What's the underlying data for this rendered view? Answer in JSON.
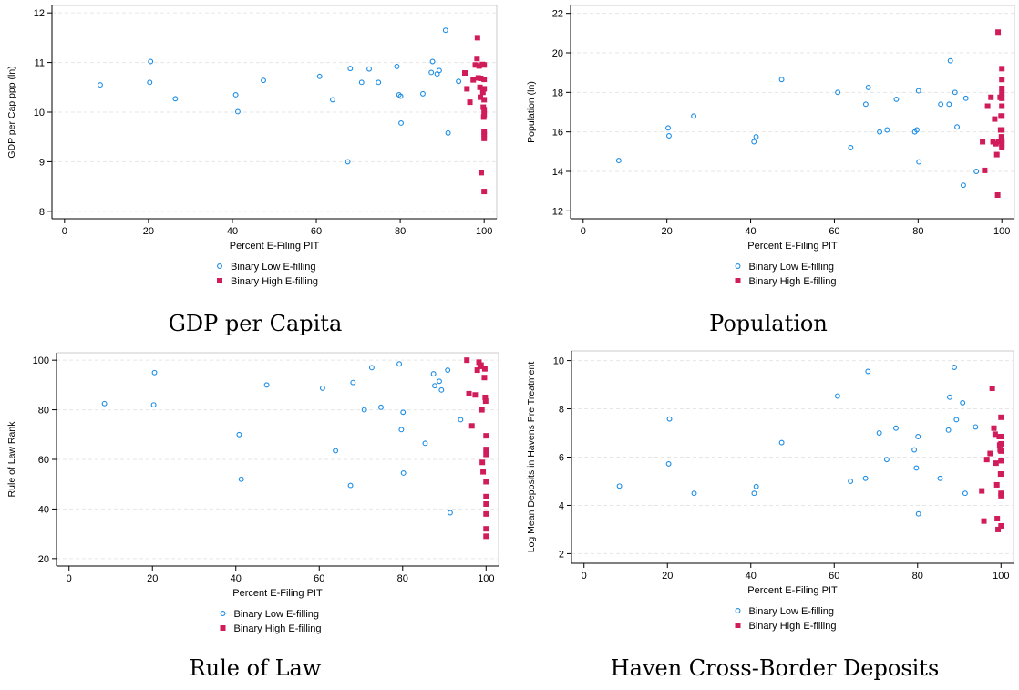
{
  "chart_data": [
    {
      "type": "scatter",
      "caption": "GDP per Capita",
      "xlabel": "Percent E-Filing PIT",
      "ylabel": "GDP per Cap ppp (ln)",
      "xlim": [
        -3,
        103
      ],
      "ylim": [
        7.85,
        12.15
      ],
      "xticks": [
        "0",
        "20",
        "40",
        "60",
        "80",
        "100"
      ],
      "yticks": [
        "8",
        "9",
        "10",
        "11",
        "12"
      ],
      "grid": "horizontal dashed",
      "legend": "bottom-center",
      "series": [
        {
          "name": "Binary Low E-filling",
          "marker": "hollow-circle",
          "color": "#1a8ce6",
          "points": [
            [
              8.5,
              10.55
            ],
            [
              20.3,
              10.6
            ],
            [
              20.5,
              11.02
            ],
            [
              26.4,
              10.27
            ],
            [
              40.8,
              10.35
            ],
            [
              41.3,
              10.01
            ],
            [
              47.4,
              10.64
            ],
            [
              60.8,
              10.72
            ],
            [
              63.9,
              10.25
            ],
            [
              67.5,
              9.0
            ],
            [
              68.1,
              10.88
            ],
            [
              70.8,
              10.6
            ],
            [
              72.6,
              10.87
            ],
            [
              74.8,
              10.6
            ],
            [
              79.2,
              10.92
            ],
            [
              79.7,
              10.35
            ],
            [
              80.1,
              10.32
            ],
            [
              80.2,
              9.78
            ],
            [
              85.4,
              10.37
            ],
            [
              87.4,
              10.8
            ],
            [
              87.7,
              11.02
            ],
            [
              88.8,
              10.77
            ],
            [
              89.3,
              10.84
            ],
            [
              90.8,
              11.65
            ],
            [
              91.4,
              9.58
            ],
            [
              93.9,
              10.62
            ]
          ]
        },
        {
          "name": "Binary High E-filling",
          "marker": "filled-square",
          "color": "#d01c5b",
          "points": [
            [
              95.4,
              10.79
            ],
            [
              95.9,
              10.47
            ],
            [
              96.6,
              10.2
            ],
            [
              97.4,
              10.65
            ],
            [
              97.9,
              10.95
            ],
            [
              98.3,
              11.08
            ],
            [
              98.4,
              11.5
            ],
            [
              98.6,
              10.69
            ],
            [
              98.8,
              10.93
            ],
            [
              99.0,
              10.5
            ],
            [
              99.1,
              10.3
            ],
            [
              99.2,
              10.68
            ],
            [
              99.3,
              8.78
            ],
            [
              99.6,
              10.96
            ],
            [
              99.7,
              10.4
            ],
            [
              99.8,
              10.1
            ],
            [
              99.9,
              9.9
            ],
            [
              100.0,
              10.95
            ],
            [
              100.0,
              10.66
            ],
            [
              100.0,
              10.47
            ],
            [
              100.0,
              10.25
            ],
            [
              100.0,
              10.05
            ],
            [
              100.0,
              9.95
            ],
            [
              100.0,
              9.6
            ],
            [
              100.0,
              9.55
            ],
            [
              100.0,
              9.47
            ],
            [
              100.0,
              8.4
            ]
          ]
        }
      ]
    },
    {
      "type": "scatter",
      "caption": "Population",
      "xlabel": "Percent E-Filing PIT",
      "ylabel": "Population (ln)",
      "xlim": [
        -3,
        103
      ],
      "ylim": [
        11.6,
        22.4
      ],
      "xticks": [
        "0",
        "20",
        "40",
        "60",
        "80",
        "100"
      ],
      "yticks": [
        "12",
        "14",
        "16",
        "18",
        "20",
        "22"
      ],
      "grid": "horizontal dashed",
      "legend": "bottom-center",
      "series": [
        {
          "name": "Binary Low E-filling",
          "marker": "hollow-circle",
          "color": "#1a8ce6",
          "points": [
            [
              8.5,
              14.55
            ],
            [
              20.3,
              16.2
            ],
            [
              20.5,
              15.8
            ],
            [
              26.4,
              16.8
            ],
            [
              40.8,
              15.5
            ],
            [
              41.3,
              15.75
            ],
            [
              47.4,
              18.65
            ],
            [
              60.8,
              18.0
            ],
            [
              63.9,
              15.2
            ],
            [
              67.5,
              17.4
            ],
            [
              68.1,
              18.25
            ],
            [
              70.8,
              16.0
            ],
            [
              72.6,
              16.1
            ],
            [
              74.8,
              17.65
            ],
            [
              79.2,
              16.0
            ],
            [
              79.7,
              16.1
            ],
            [
              80.1,
              18.08
            ],
            [
              80.2,
              14.48
            ],
            [
              85.4,
              17.4
            ],
            [
              87.4,
              17.4
            ],
            [
              87.7,
              19.6
            ],
            [
              88.8,
              18.0
            ],
            [
              89.3,
              16.25
            ],
            [
              90.8,
              13.3
            ],
            [
              91.4,
              17.7
            ],
            [
              93.9,
              14.0
            ]
          ]
        },
        {
          "name": "Binary High E-filling",
          "marker": "filled-square",
          "color": "#d01c5b",
          "points": [
            [
              95.4,
              15.5
            ],
            [
              95.9,
              14.05
            ],
            [
              96.6,
              17.3
            ],
            [
              97.4,
              17.75
            ],
            [
              97.9,
              15.5
            ],
            [
              98.3,
              16.65
            ],
            [
              98.6,
              15.4
            ],
            [
              98.8,
              14.85
            ],
            [
              99.0,
              12.8
            ],
            [
              99.1,
              21.05
            ],
            [
              99.3,
              15.5
            ],
            [
              99.6,
              17.75
            ],
            [
              99.7,
              16.1
            ],
            [
              99.8,
              16.8
            ],
            [
              99.9,
              15.75
            ],
            [
              100.0,
              19.2
            ],
            [
              100.0,
              18.65
            ],
            [
              100.0,
              18.2
            ],
            [
              100.0,
              17.95
            ],
            [
              100.0,
              17.7
            ],
            [
              100.0,
              17.3
            ],
            [
              100.0,
              16.8
            ],
            [
              100.0,
              16.1
            ],
            [
              100.0,
              15.55
            ],
            [
              100.0,
              15.4
            ],
            [
              100.0,
              15.2
            ]
          ]
        }
      ]
    },
    {
      "type": "scatter",
      "caption": "Rule of Law",
      "xlabel": "Percent E-Filing PIT",
      "ylabel": "Rule of Law Rank",
      "xlim": [
        -3,
        103
      ],
      "ylim": [
        17,
        103
      ],
      "xticks": [
        "0",
        "20",
        "40",
        "60",
        "80",
        "100"
      ],
      "yticks": [
        "20",
        "40",
        "60",
        "80",
        "100"
      ],
      "grid": "horizontal dashed",
      "legend": "bottom-center",
      "series": [
        {
          "name": "Binary Low E-filling",
          "marker": "hollow-circle",
          "color": "#1a8ce6",
          "points": [
            [
              8.5,
              82.5
            ],
            [
              20.3,
              82.0
            ],
            [
              20.5,
              95.0
            ],
            [
              40.8,
              70.0
            ],
            [
              41.3,
              52.0
            ],
            [
              47.4,
              90.0
            ],
            [
              60.8,
              88.7
            ],
            [
              63.9,
              63.5
            ],
            [
              67.5,
              49.5
            ],
            [
              68.1,
              91.0
            ],
            [
              70.8,
              80.0
            ],
            [
              72.6,
              97.0
            ],
            [
              74.8,
              81.0
            ],
            [
              79.2,
              98.5
            ],
            [
              79.7,
              72.0
            ],
            [
              80.1,
              79.0
            ],
            [
              80.2,
              54.5
            ],
            [
              85.4,
              66.5
            ],
            [
              87.4,
              94.5
            ],
            [
              87.7,
              89.7
            ],
            [
              88.8,
              91.5
            ],
            [
              89.3,
              88.0
            ],
            [
              90.8,
              96.0
            ],
            [
              91.4,
              38.5
            ],
            [
              93.9,
              76.0
            ]
          ]
        },
        {
          "name": "Binary High E-filling",
          "marker": "filled-square",
          "color": "#d01c5b",
          "points": [
            [
              95.4,
              100.0
            ],
            [
              95.9,
              86.5
            ],
            [
              96.6,
              73.5
            ],
            [
              97.4,
              86.0
            ],
            [
              97.9,
              96.0
            ],
            [
              98.3,
              99.2
            ],
            [
              98.6,
              97.5
            ],
            [
              98.8,
              98.0
            ],
            [
              99.0,
              80.0
            ],
            [
              99.1,
              58.8
            ],
            [
              99.3,
              55.0
            ],
            [
              99.6,
              93.0
            ],
            [
              99.7,
              96.5
            ],
            [
              99.8,
              85.0
            ],
            [
              99.9,
              83.5
            ],
            [
              100.0,
              69.5
            ],
            [
              100.0,
              64.0
            ],
            [
              100.0,
              62.0
            ],
            [
              100.0,
              51.0
            ],
            [
              100.0,
              45.0
            ],
            [
              100.0,
              42.0
            ],
            [
              100.0,
              38.0
            ],
            [
              100.0,
              32.0
            ],
            [
              100.0,
              29.0
            ]
          ]
        }
      ]
    },
    {
      "type": "scatter",
      "caption": "Haven Cross-Border Deposits",
      "xlabel": "Percent E-Filing PIT",
      "ylabel": "Log Mean Deposits in Havens Pre Treatment",
      "xlim": [
        -3,
        103
      ],
      "ylim": [
        1.6,
        10.4
      ],
      "xticks": [
        "0",
        "20",
        "40",
        "60",
        "80",
        "100"
      ],
      "yticks": [
        "2",
        "4",
        "6",
        "8",
        "10"
      ],
      "grid": "horizontal dashed",
      "legend": "bottom-center",
      "series": [
        {
          "name": "Binary Low E-filling",
          "marker": "hollow-circle",
          "color": "#1a8ce6",
          "points": [
            [
              8.5,
              4.8
            ],
            [
              20.3,
              5.72
            ],
            [
              20.5,
              7.58
            ],
            [
              26.4,
              4.5
            ],
            [
              40.8,
              4.5
            ],
            [
              41.3,
              4.78
            ],
            [
              47.4,
              6.6
            ],
            [
              60.8,
              8.53
            ],
            [
              63.9,
              5.0
            ],
            [
              67.5,
              5.12
            ],
            [
              68.1,
              9.55
            ],
            [
              70.8,
              7.0
            ],
            [
              72.6,
              5.9
            ],
            [
              74.8,
              7.2
            ],
            [
              79.2,
              6.3
            ],
            [
              79.7,
              5.55
            ],
            [
              80.1,
              6.85
            ],
            [
              80.2,
              3.65
            ],
            [
              85.4,
              5.12
            ],
            [
              87.4,
              7.12
            ],
            [
              87.7,
              8.48
            ],
            [
              88.8,
              9.72
            ],
            [
              89.3,
              7.55
            ],
            [
              90.8,
              8.25
            ],
            [
              91.4,
              4.5
            ],
            [
              93.9,
              7.25
            ]
          ]
        },
        {
          "name": "Binary High E-filling",
          "marker": "filled-square",
          "color": "#d01c5b",
          "points": [
            [
              95.4,
              4.6
            ],
            [
              95.9,
              3.35
            ],
            [
              96.6,
              5.9
            ],
            [
              97.4,
              6.15
            ],
            [
              97.9,
              8.85
            ],
            [
              98.3,
              7.2
            ],
            [
              98.6,
              6.95
            ],
            [
              98.8,
              5.75
            ],
            [
              99.0,
              4.85
            ],
            [
              99.1,
              3.45
            ],
            [
              99.3,
              3.0
            ],
            [
              99.6,
              6.85
            ],
            [
              99.7,
              6.5
            ],
            [
              99.8,
              6.3
            ],
            [
              99.9,
              5.3
            ],
            [
              100.0,
              7.65
            ],
            [
              100.0,
              6.85
            ],
            [
              100.0,
              6.55
            ],
            [
              100.0,
              6.25
            ],
            [
              100.0,
              5.85
            ],
            [
              100.0,
              5.3
            ],
            [
              100.0,
              4.5
            ],
            [
              100.0,
              4.4
            ],
            [
              100.0,
              3.15
            ]
          ]
        }
      ]
    }
  ]
}
